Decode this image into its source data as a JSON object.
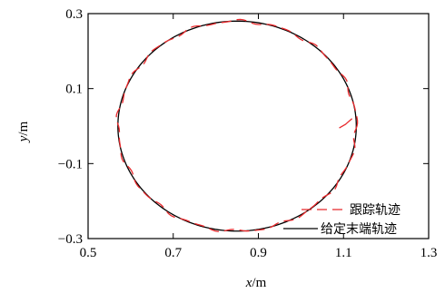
{
  "chart_data": {
    "type": "line",
    "xlabel_var": "x",
    "xlabel_unit": "/m",
    "ylabel_var": "y",
    "ylabel_unit": "/m",
    "xlim": [
      0.5,
      1.3
    ],
    "ylim": [
      -0.3,
      0.3
    ],
    "x_ticks": [
      0.5,
      0.7,
      0.9,
      1.1,
      1.3
    ],
    "y_ticks": [
      -0.3,
      -0.1,
      0.1,
      0.3
    ],
    "x_tick_labels": [
      "0.5",
      "0.7",
      "0.9",
      "1.1",
      "1.3"
    ],
    "y_tick_labels": [
      "−0.3",
      "−0.1",
      "0.1",
      "0.3"
    ],
    "grid": false,
    "legend_position": "bottom-right",
    "reference_circle": {
      "center_x": 0.85,
      "center_y": 0.0,
      "radius": 0.28
    },
    "series": [
      {
        "name": "跟踪轨迹",
        "style": "dashed",
        "color": "#e8282b"
      },
      {
        "name": "给定末端轨迹",
        "style": "solid",
        "color": "#000000"
      }
    ],
    "tracking_stray_segment": {
      "x": [
        1.09,
        1.105,
        1.12
      ],
      "y": [
        -0.005,
        0.005,
        0.02
      ]
    }
  }
}
